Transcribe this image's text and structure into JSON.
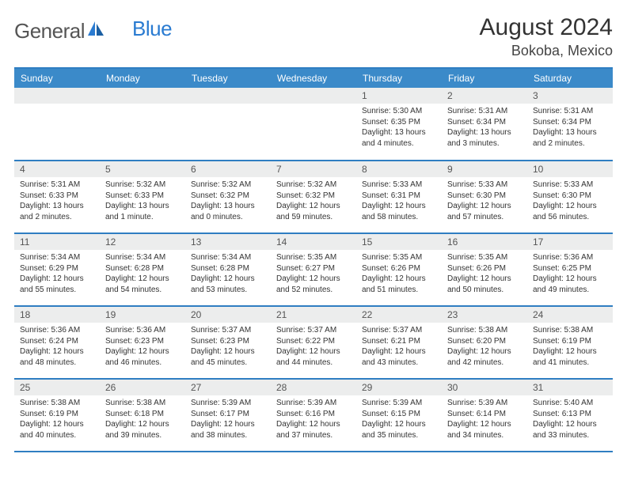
{
  "logo": {
    "text_gray": "General",
    "text_blue": "Blue"
  },
  "title": "August 2024",
  "location": "Bokoba, Mexico",
  "colors": {
    "header_bg": "#3b8ac9",
    "header_text": "#ffffff",
    "rule": "#2f7ec2",
    "daynum_bg": "#eceded",
    "body_text": "#333333",
    "logo_gray": "#555555",
    "logo_blue": "#2a7bd1"
  },
  "day_headers": [
    "Sunday",
    "Monday",
    "Tuesday",
    "Wednesday",
    "Thursday",
    "Friday",
    "Saturday"
  ],
  "weeks": [
    [
      {
        "n": "",
        "sunrise": "",
        "sunset": "",
        "daylight": ""
      },
      {
        "n": "",
        "sunrise": "",
        "sunset": "",
        "daylight": ""
      },
      {
        "n": "",
        "sunrise": "",
        "sunset": "",
        "daylight": ""
      },
      {
        "n": "",
        "sunrise": "",
        "sunset": "",
        "daylight": ""
      },
      {
        "n": "1",
        "sunrise": "Sunrise: 5:30 AM",
        "sunset": "Sunset: 6:35 PM",
        "daylight": "Daylight: 13 hours and 4 minutes."
      },
      {
        "n": "2",
        "sunrise": "Sunrise: 5:31 AM",
        "sunset": "Sunset: 6:34 PM",
        "daylight": "Daylight: 13 hours and 3 minutes."
      },
      {
        "n": "3",
        "sunrise": "Sunrise: 5:31 AM",
        "sunset": "Sunset: 6:34 PM",
        "daylight": "Daylight: 13 hours and 2 minutes."
      }
    ],
    [
      {
        "n": "4",
        "sunrise": "Sunrise: 5:31 AM",
        "sunset": "Sunset: 6:33 PM",
        "daylight": "Daylight: 13 hours and 2 minutes."
      },
      {
        "n": "5",
        "sunrise": "Sunrise: 5:32 AM",
        "sunset": "Sunset: 6:33 PM",
        "daylight": "Daylight: 13 hours and 1 minute."
      },
      {
        "n": "6",
        "sunrise": "Sunrise: 5:32 AM",
        "sunset": "Sunset: 6:32 PM",
        "daylight": "Daylight: 13 hours and 0 minutes."
      },
      {
        "n": "7",
        "sunrise": "Sunrise: 5:32 AM",
        "sunset": "Sunset: 6:32 PM",
        "daylight": "Daylight: 12 hours and 59 minutes."
      },
      {
        "n": "8",
        "sunrise": "Sunrise: 5:33 AM",
        "sunset": "Sunset: 6:31 PM",
        "daylight": "Daylight: 12 hours and 58 minutes."
      },
      {
        "n": "9",
        "sunrise": "Sunrise: 5:33 AM",
        "sunset": "Sunset: 6:30 PM",
        "daylight": "Daylight: 12 hours and 57 minutes."
      },
      {
        "n": "10",
        "sunrise": "Sunrise: 5:33 AM",
        "sunset": "Sunset: 6:30 PM",
        "daylight": "Daylight: 12 hours and 56 minutes."
      }
    ],
    [
      {
        "n": "11",
        "sunrise": "Sunrise: 5:34 AM",
        "sunset": "Sunset: 6:29 PM",
        "daylight": "Daylight: 12 hours and 55 minutes."
      },
      {
        "n": "12",
        "sunrise": "Sunrise: 5:34 AM",
        "sunset": "Sunset: 6:28 PM",
        "daylight": "Daylight: 12 hours and 54 minutes."
      },
      {
        "n": "13",
        "sunrise": "Sunrise: 5:34 AM",
        "sunset": "Sunset: 6:28 PM",
        "daylight": "Daylight: 12 hours and 53 minutes."
      },
      {
        "n": "14",
        "sunrise": "Sunrise: 5:35 AM",
        "sunset": "Sunset: 6:27 PM",
        "daylight": "Daylight: 12 hours and 52 minutes."
      },
      {
        "n": "15",
        "sunrise": "Sunrise: 5:35 AM",
        "sunset": "Sunset: 6:26 PM",
        "daylight": "Daylight: 12 hours and 51 minutes."
      },
      {
        "n": "16",
        "sunrise": "Sunrise: 5:35 AM",
        "sunset": "Sunset: 6:26 PM",
        "daylight": "Daylight: 12 hours and 50 minutes."
      },
      {
        "n": "17",
        "sunrise": "Sunrise: 5:36 AM",
        "sunset": "Sunset: 6:25 PM",
        "daylight": "Daylight: 12 hours and 49 minutes."
      }
    ],
    [
      {
        "n": "18",
        "sunrise": "Sunrise: 5:36 AM",
        "sunset": "Sunset: 6:24 PM",
        "daylight": "Daylight: 12 hours and 48 minutes."
      },
      {
        "n": "19",
        "sunrise": "Sunrise: 5:36 AM",
        "sunset": "Sunset: 6:23 PM",
        "daylight": "Daylight: 12 hours and 46 minutes."
      },
      {
        "n": "20",
        "sunrise": "Sunrise: 5:37 AM",
        "sunset": "Sunset: 6:23 PM",
        "daylight": "Daylight: 12 hours and 45 minutes."
      },
      {
        "n": "21",
        "sunrise": "Sunrise: 5:37 AM",
        "sunset": "Sunset: 6:22 PM",
        "daylight": "Daylight: 12 hours and 44 minutes."
      },
      {
        "n": "22",
        "sunrise": "Sunrise: 5:37 AM",
        "sunset": "Sunset: 6:21 PM",
        "daylight": "Daylight: 12 hours and 43 minutes."
      },
      {
        "n": "23",
        "sunrise": "Sunrise: 5:38 AM",
        "sunset": "Sunset: 6:20 PM",
        "daylight": "Daylight: 12 hours and 42 minutes."
      },
      {
        "n": "24",
        "sunrise": "Sunrise: 5:38 AM",
        "sunset": "Sunset: 6:19 PM",
        "daylight": "Daylight: 12 hours and 41 minutes."
      }
    ],
    [
      {
        "n": "25",
        "sunrise": "Sunrise: 5:38 AM",
        "sunset": "Sunset: 6:19 PM",
        "daylight": "Daylight: 12 hours and 40 minutes."
      },
      {
        "n": "26",
        "sunrise": "Sunrise: 5:38 AM",
        "sunset": "Sunset: 6:18 PM",
        "daylight": "Daylight: 12 hours and 39 minutes."
      },
      {
        "n": "27",
        "sunrise": "Sunrise: 5:39 AM",
        "sunset": "Sunset: 6:17 PM",
        "daylight": "Daylight: 12 hours and 38 minutes."
      },
      {
        "n": "28",
        "sunrise": "Sunrise: 5:39 AM",
        "sunset": "Sunset: 6:16 PM",
        "daylight": "Daylight: 12 hours and 37 minutes."
      },
      {
        "n": "29",
        "sunrise": "Sunrise: 5:39 AM",
        "sunset": "Sunset: 6:15 PM",
        "daylight": "Daylight: 12 hours and 35 minutes."
      },
      {
        "n": "30",
        "sunrise": "Sunrise: 5:39 AM",
        "sunset": "Sunset: 6:14 PM",
        "daylight": "Daylight: 12 hours and 34 minutes."
      },
      {
        "n": "31",
        "sunrise": "Sunrise: 5:40 AM",
        "sunset": "Sunset: 6:13 PM",
        "daylight": "Daylight: 12 hours and 33 minutes."
      }
    ]
  ]
}
